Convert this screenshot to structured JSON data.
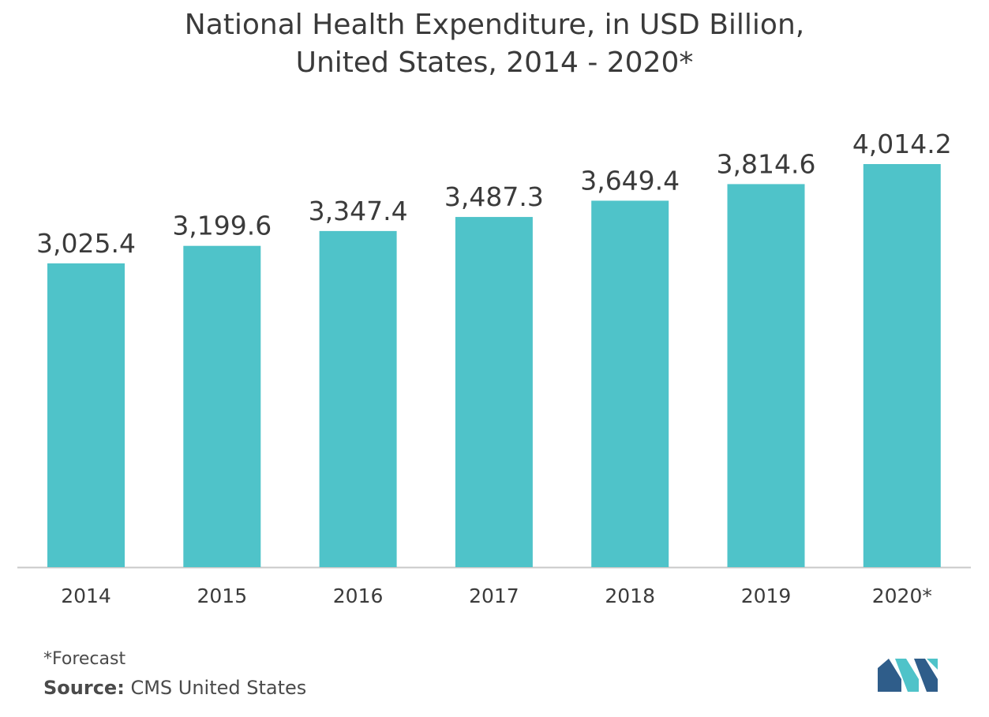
{
  "title_line1": "National Health Expenditure, in USD Billion,",
  "title_line2": "United States, 2014 - 2020*",
  "footnote": "*Forecast",
  "source_label": "Source:",
  "source_value": "CMS United States",
  "colors": {
    "bar": "#4fc3c9",
    "axis": "#c8c8c8",
    "label": "#3b3b3b",
    "logo_dark": "#2f5d8a",
    "logo_light": "#4fc3c9"
  },
  "logo_icon": "mordor-intelligence-logo-icon",
  "chart_data": {
    "type": "bar",
    "title": "National Health Expenditure, in USD Billion, United States, 2014 - 2020*",
    "xlabel": "",
    "ylabel": "",
    "categories": [
      "2014",
      "2015",
      "2016",
      "2017",
      "2018",
      "2019",
      "2020*"
    ],
    "values": [
      3025.4,
      3199.6,
      3347.4,
      3487.3,
      3649.4,
      3814.6,
      4014.2
    ],
    "value_labels": [
      "3,025.4",
      "3,199.6",
      "3,347.4",
      "3,487.3",
      "3,649.4",
      "3,814.6",
      "4,014.2"
    ],
    "ylim": [
      0,
      4014.2
    ],
    "grid": false,
    "legend": "none"
  }
}
